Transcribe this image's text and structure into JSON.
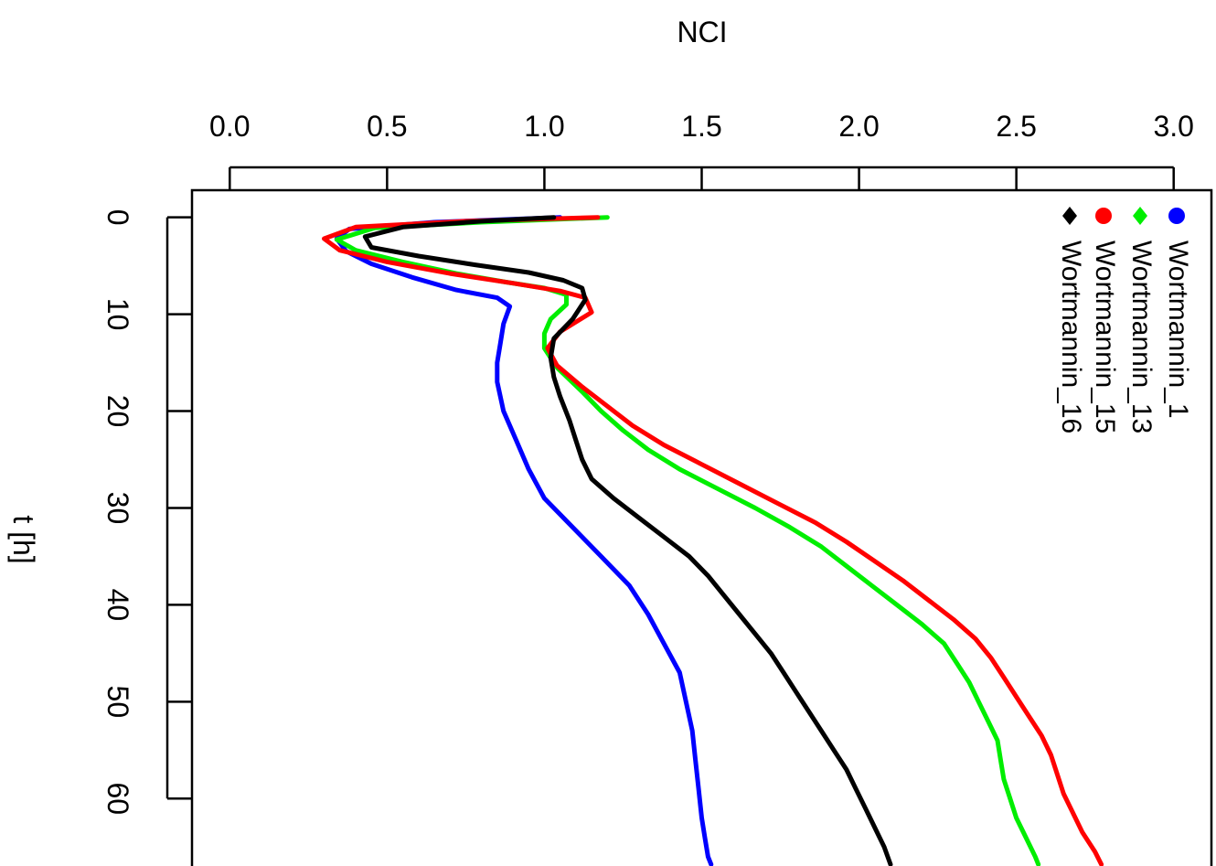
{
  "chart_data": {
    "type": "line",
    "orientation": "rotated-90",
    "xlabel": "NCI",
    "ylabel": "t [h]",
    "xlim": [
      -0.12,
      3.12
    ],
    "ylim": [
      -2.8,
      68
    ],
    "x_ticks": [
      0.0,
      0.5,
      1.0,
      1.5,
      2.0,
      2.5,
      3.0
    ],
    "x_tick_labels": [
      "0.0",
      "0.5",
      "1.0",
      "1.5",
      "2.0",
      "2.5",
      "3.0"
    ],
    "y_ticks": [
      0,
      10,
      20,
      30,
      40,
      50,
      60
    ],
    "y_tick_labels": [
      "0",
      "10",
      "20",
      "30",
      "40",
      "50",
      "60"
    ],
    "grid": false,
    "legend_position": "top-right",
    "series": [
      {
        "name": "Wortmannin_1",
        "color": "#0000ff",
        "marker": "circle",
        "points": [
          [
            1.05,
            0
          ],
          [
            0.65,
            0.5
          ],
          [
            0.38,
            1.2
          ],
          [
            0.34,
            2.2
          ],
          [
            0.37,
            3.5
          ],
          [
            0.45,
            4.8
          ],
          [
            0.58,
            6.2
          ],
          [
            0.72,
            7.5
          ],
          [
            0.85,
            8.3
          ],
          [
            0.89,
            9.2
          ],
          [
            0.87,
            11
          ],
          [
            0.86,
            13
          ],
          [
            0.85,
            15
          ],
          [
            0.85,
            17
          ],
          [
            0.87,
            20
          ],
          [
            0.91,
            23
          ],
          [
            0.95,
            26
          ],
          [
            1.0,
            29
          ],
          [
            1.09,
            32
          ],
          [
            1.18,
            35
          ],
          [
            1.27,
            38
          ],
          [
            1.33,
            41
          ],
          [
            1.38,
            44
          ],
          [
            1.43,
            47
          ],
          [
            1.45,
            50
          ],
          [
            1.47,
            53
          ],
          [
            1.48,
            56
          ],
          [
            1.49,
            59
          ],
          [
            1.5,
            62
          ],
          [
            1.51,
            64
          ],
          [
            1.52,
            66
          ],
          [
            1.53,
            66.8
          ]
        ]
      },
      {
        "name": "Wortmannin_13",
        "color": "#00ee00",
        "marker": "diamond",
        "points": [
          [
            1.2,
            0
          ],
          [
            0.8,
            0.5
          ],
          [
            0.46,
            1.1
          ],
          [
            0.34,
            2.3
          ],
          [
            0.4,
            3.4
          ],
          [
            0.55,
            4.6
          ],
          [
            0.72,
            5.8
          ],
          [
            0.88,
            6.7
          ],
          [
            1.0,
            7.3
          ],
          [
            1.07,
            8.0
          ],
          [
            1.07,
            9.0
          ],
          [
            1.02,
            10.5
          ],
          [
            1.0,
            12.0
          ],
          [
            1.0,
            13.5
          ],
          [
            1.04,
            15.5
          ],
          [
            1.12,
            18
          ],
          [
            1.18,
            20
          ],
          [
            1.25,
            22
          ],
          [
            1.33,
            24
          ],
          [
            1.43,
            26
          ],
          [
            1.55,
            28
          ],
          [
            1.67,
            30
          ],
          [
            1.78,
            32
          ],
          [
            1.88,
            34
          ],
          [
            1.96,
            36
          ],
          [
            2.04,
            38
          ],
          [
            2.12,
            40
          ],
          [
            2.2,
            42
          ],
          [
            2.27,
            44
          ],
          [
            2.31,
            46
          ],
          [
            2.35,
            48
          ],
          [
            2.38,
            50
          ],
          [
            2.41,
            52
          ],
          [
            2.44,
            54
          ],
          [
            2.45,
            56
          ],
          [
            2.46,
            58
          ],
          [
            2.48,
            60
          ],
          [
            2.5,
            62
          ],
          [
            2.53,
            64
          ],
          [
            2.56,
            66
          ],
          [
            2.57,
            66.8
          ]
        ]
      },
      {
        "name": "Wortmannin_15",
        "color": "#ff0000",
        "marker": "circle",
        "points": [
          [
            1.17,
            0
          ],
          [
            0.75,
            0.4
          ],
          [
            0.4,
            1.0
          ],
          [
            0.3,
            2.2
          ],
          [
            0.35,
            3.4
          ],
          [
            0.5,
            4.6
          ],
          [
            0.7,
            5.8
          ],
          [
            0.9,
            6.8
          ],
          [
            1.05,
            7.6
          ],
          [
            1.13,
            8.3
          ],
          [
            1.15,
            9.8
          ],
          [
            1.05,
            11.8
          ],
          [
            1.01,
            13.5
          ],
          [
            1.04,
            15.3
          ],
          [
            1.12,
            17.5
          ],
          [
            1.2,
            19.5
          ],
          [
            1.28,
            21.5
          ],
          [
            1.38,
            23.5
          ],
          [
            1.5,
            25.5
          ],
          [
            1.62,
            27.5
          ],
          [
            1.74,
            29.5
          ],
          [
            1.86,
            31.5
          ],
          [
            1.96,
            33.5
          ],
          [
            2.05,
            35.5
          ],
          [
            2.14,
            37.5
          ],
          [
            2.22,
            39.5
          ],
          [
            2.3,
            41.5
          ],
          [
            2.37,
            43.5
          ],
          [
            2.42,
            45.5
          ],
          [
            2.46,
            47.5
          ],
          [
            2.5,
            49.5
          ],
          [
            2.54,
            51.5
          ],
          [
            2.58,
            53.5
          ],
          [
            2.61,
            55.5
          ],
          [
            2.63,
            57.5
          ],
          [
            2.65,
            59.5
          ],
          [
            2.68,
            61.5
          ],
          [
            2.71,
            63.5
          ],
          [
            2.75,
            65.5
          ],
          [
            2.77,
            66.8
          ]
        ]
      },
      {
        "name": "Wortmannin_16",
        "color": "#000000",
        "marker": "diamond",
        "points": [
          [
            1.03,
            0
          ],
          [
            0.8,
            0.4
          ],
          [
            0.55,
            1.0
          ],
          [
            0.43,
            2.0
          ],
          [
            0.45,
            3.1
          ],
          [
            0.6,
            4.0
          ],
          [
            0.78,
            4.9
          ],
          [
            0.95,
            5.7
          ],
          [
            1.06,
            6.5
          ],
          [
            1.12,
            7.3
          ],
          [
            1.13,
            8.5
          ],
          [
            1.09,
            10.5
          ],
          [
            1.03,
            12.5
          ],
          [
            1.02,
            14.5
          ],
          [
            1.03,
            16.5
          ],
          [
            1.05,
            18.5
          ],
          [
            1.08,
            21
          ],
          [
            1.1,
            23
          ],
          [
            1.12,
            25
          ],
          [
            1.15,
            27
          ],
          [
            1.22,
            29
          ],
          [
            1.3,
            31
          ],
          [
            1.38,
            33
          ],
          [
            1.46,
            35
          ],
          [
            1.52,
            37
          ],
          [
            1.57,
            39
          ],
          [
            1.62,
            41
          ],
          [
            1.67,
            43
          ],
          [
            1.72,
            45
          ],
          [
            1.76,
            47
          ],
          [
            1.8,
            49
          ],
          [
            1.84,
            51
          ],
          [
            1.88,
            53
          ],
          [
            1.92,
            55
          ],
          [
            1.96,
            57
          ],
          [
            1.99,
            59
          ],
          [
            2.02,
            61
          ],
          [
            2.05,
            63
          ],
          [
            2.08,
            65
          ],
          [
            2.1,
            66.8
          ]
        ]
      }
    ]
  }
}
